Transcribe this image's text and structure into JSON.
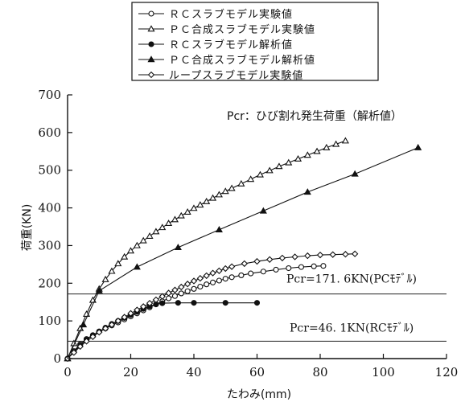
{
  "chart_data": {
    "type": "line",
    "xlabel": "たわみ(mm)",
    "ylabel": "荷重(KN)",
    "xlim": [
      0,
      120
    ],
    "ylim": [
      0,
      700
    ],
    "xticks": [
      0,
      20,
      40,
      60,
      80,
      100,
      120
    ],
    "yticks": [
      0,
      100,
      200,
      300,
      400,
      500,
      600,
      700
    ],
    "grid": false,
    "legend_position": "top",
    "series": [
      {
        "name": "ＲＣスラブモデル実験値",
        "marker": "open-circle",
        "x": [
          0,
          2,
          4,
          6,
          8,
          10,
          12,
          14,
          16,
          18,
          20,
          22,
          24,
          26,
          28,
          30,
          32,
          34,
          36,
          38,
          40,
          42,
          44,
          46,
          48,
          50,
          52,
          55,
          58,
          62,
          66,
          70,
          74,
          78,
          81
        ],
        "y": [
          0,
          20,
          38,
          52,
          62,
          72,
          80,
          88,
          96,
          104,
          112,
          120,
          128,
          136,
          144,
          152,
          160,
          166,
          173,
          179,
          185,
          191,
          197,
          202,
          207,
          212,
          216,
          221,
          226,
          231,
          236,
          240,
          243,
          245,
          246
        ]
      },
      {
        "name": "ＰＣ合成スラブモデル実験値",
        "marker": "open-triangle",
        "x": [
          0,
          2,
          4,
          6,
          8,
          10,
          12,
          14,
          16,
          18,
          20,
          22,
          24,
          26,
          28,
          30,
          32,
          34,
          36,
          38,
          40,
          42,
          44,
          46,
          48,
          50,
          52,
          55,
          58,
          61,
          64,
          67,
          70,
          73,
          76,
          79,
          82,
          85,
          88
        ],
        "y": [
          0,
          40,
          80,
          118,
          155,
          185,
          210,
          232,
          252,
          270,
          286,
          300,
          313,
          325,
          337,
          348,
          359,
          369,
          379,
          389,
          399,
          408,
          417,
          426,
          435,
          444,
          452,
          464,
          476,
          488,
          499,
          510,
          520,
          530,
          540,
          550,
          560,
          569,
          578
        ]
      },
      {
        "name": "ＲＣスラブモデル解析値",
        "marker": "filled-circle",
        "x": [
          0,
          2,
          4,
          6,
          8,
          10,
          12,
          14,
          16,
          18,
          20,
          22,
          24,
          26,
          28,
          30,
          35,
          40,
          50,
          60
        ],
        "y": [
          0,
          18,
          35,
          50,
          62,
          72,
          82,
          92,
          100,
          108,
          116,
          124,
          132,
          139,
          144,
          147,
          148,
          148,
          148,
          148
        ]
      },
      {
        "name": "ＰＣ合成スラブモデル解析値",
        "marker": "filled-triangle",
        "x": [
          0,
          5,
          10,
          22,
          35,
          48,
          62,
          76,
          91,
          111
        ],
        "y": [
          0,
          90,
          180,
          243,
          295,
          342,
          392,
          442,
          490,
          560
        ]
      },
      {
        "name": "ループスラブモデル実験値",
        "marker": "open-diamond",
        "x": [
          0,
          2,
          4,
          6,
          8,
          10,
          12,
          14,
          16,
          18,
          20,
          22,
          24,
          26,
          28,
          30,
          32,
          34,
          36,
          38,
          40,
          42,
          44,
          46,
          48,
          50,
          52,
          56,
          60,
          64,
          68,
          72,
          76,
          80,
          84,
          88,
          91
        ],
        "y": [
          0,
          16,
          32,
          46,
          58,
          70,
          80,
          90,
          100,
          110,
          120,
          129,
          138,
          147,
          156,
          165,
          174,
          182,
          190,
          198,
          206,
          213,
          220,
          227,
          233,
          239,
          244,
          252,
          258,
          263,
          267,
          270,
          273,
          275,
          276,
          277,
          278
        ]
      }
    ],
    "reference_lines": [
      {
        "y": 171.6,
        "label": "Pcr=171. 6KN(PCﾓﾃﾞﾙ)"
      },
      {
        "y": 46.1,
        "label": "Pcr=46. 1KN(RCﾓﾃﾞﾙ)"
      }
    ],
    "annotation": "Pcr：ひび割れ発生荷重（解析値）"
  }
}
